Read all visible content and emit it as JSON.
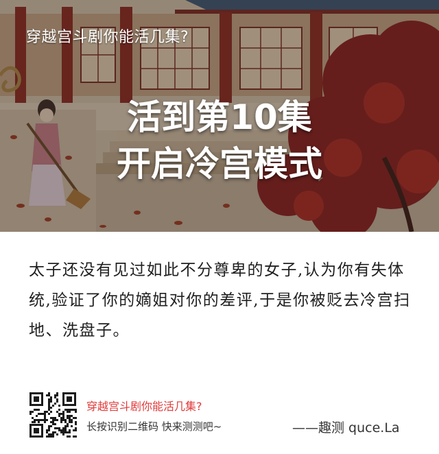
{
  "banner": {
    "top_title": "穿越宫斗剧你能活几集?",
    "headline_line1": "活到第10集",
    "headline_line2": "开启冷宫模式"
  },
  "description": "太子还没有见过如此不分尊卑的女子,认为你有失体统,验证了你的嫡姐对你的差评,于是你被贬去冷宫扫地、洗盘子。",
  "footer": {
    "title": "穿越宫斗剧你能活几集?",
    "hint": "长按识别二维码  快来测测吧~",
    "brand": "——趣测 quce.La"
  },
  "colors": {
    "footer_title": "#e03a3a",
    "maple_red": "#8c1f1f",
    "temple_red": "#8e2a22"
  },
  "icons": {
    "qr": "qr-code-icon"
  }
}
